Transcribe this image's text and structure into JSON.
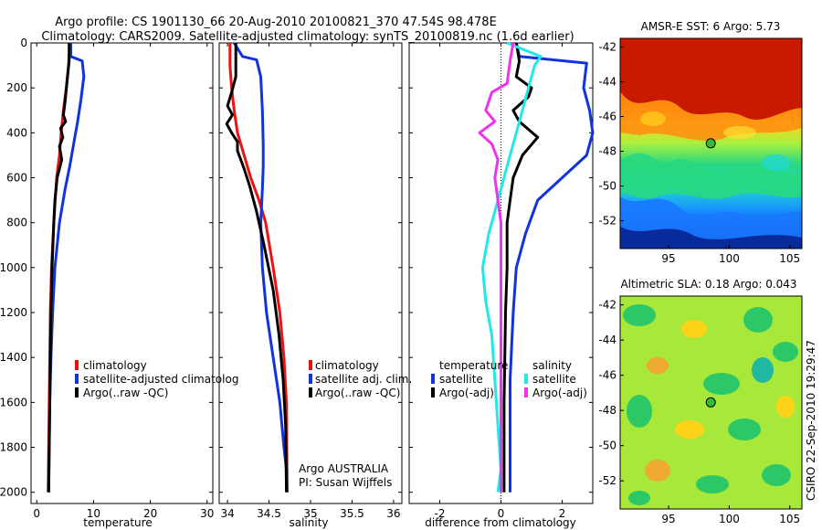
{
  "figure": {
    "title_line1": "Argo profile: CS 1901130_66 20-Aug-2010 20100821_370 47.54S 98.478E",
    "title_line2": "Climatology: CARS2009. Satellite-adjusted climatology: synTS_20100819.nc (1.6d earlier)",
    "side_label": "CSIRO 22-Sep-2010 19:29:47",
    "note_line1": "Argo AUSTRALIA",
    "note_line2": "PI: Susan Wijffels"
  },
  "colors": {
    "red": "#ee1111",
    "blue": "#1133dd",
    "black": "#000000",
    "cyan": "#22e8e8",
    "magenta": "#ee33ee"
  },
  "chart_data": [
    {
      "id": "temperature",
      "type": "line",
      "xlabel": "temperature",
      "ylabel": "",
      "xlim": [
        -1,
        31
      ],
      "ylim": [
        2050,
        0
      ],
      "xticks": [
        0,
        10,
        20,
        30
      ],
      "yticks": [
        0,
        200,
        400,
        600,
        800,
        1000,
        1200,
        1400,
        1600,
        1800,
        2000
      ],
      "legend": [
        "climatology",
        "satellite-adjusted climatolog",
        "Argo(..raw -QC)"
      ],
      "series": [
        {
          "name": "climatology",
          "color": "#ee1111",
          "x": [
            5.8,
            5.6,
            5.2,
            4.7,
            4.3,
            4.0,
            3.5,
            3.0,
            2.6,
            2.4,
            2.3,
            2.2,
            2.1,
            2.0
          ],
          "y": [
            0,
            100,
            200,
            300,
            400,
            500,
            600,
            800,
            1000,
            1200,
            1400,
            1600,
            1800,
            2000
          ]
        },
        {
          "name": "satellite-adjusted climatology",
          "color": "#1133dd",
          "x": [
            6.0,
            6.0,
            8.0,
            8.3,
            7.8,
            7.2,
            6.5,
            5.8,
            5.0,
            4.0,
            3.2,
            2.8,
            2.5,
            2.3,
            2.2,
            2.1
          ],
          "y": [
            0,
            60,
            80,
            150,
            250,
            350,
            450,
            550,
            650,
            800,
            1000,
            1200,
            1400,
            1600,
            1800,
            2000
          ]
        },
        {
          "name": "Argo",
          "color": "#000000",
          "x": [
            5.7,
            5.7,
            5.3,
            5.0,
            4.7,
            5.1,
            4.2,
            4.6,
            4.0,
            4.4,
            3.6,
            3.2,
            3.0,
            2.7,
            2.5,
            2.4,
            2.3,
            2.2,
            2.1
          ],
          "y": [
            0,
            80,
            180,
            260,
            320,
            350,
            380,
            420,
            460,
            520,
            600,
            700,
            800,
            1000,
            1200,
            1400,
            1600,
            1800,
            2000
          ]
        }
      ]
    },
    {
      "id": "salinity",
      "type": "line",
      "xlabel": "salinity",
      "xlim": [
        33.9,
        36.1
      ],
      "ylim": [
        2050,
        0
      ],
      "xticks": [
        34,
        34.5,
        35,
        35.5,
        36
      ],
      "xticklabels": [
        "34",
        "34.5",
        "35",
        "35.5",
        "36"
      ],
      "legend": [
        "climatology",
        "satellite adj. clim.",
        "Argo(..raw -QC)"
      ],
      "series": [
        {
          "name": "climatology",
          "color": "#ee1111",
          "x": [
            34.03,
            34.03,
            34.05,
            34.08,
            34.12,
            34.2,
            34.28,
            34.38,
            34.46,
            34.55,
            34.63,
            34.68,
            34.71,
            34.72
          ],
          "y": [
            0,
            100,
            200,
            300,
            400,
            500,
            600,
            700,
            800,
            1000,
            1200,
            1400,
            1600,
            2000
          ]
        },
        {
          "name": "satellite adj. clim.",
          "color": "#1133dd",
          "x": [
            34.08,
            34.18,
            34.35,
            34.4,
            34.42,
            34.43,
            34.43,
            34.42,
            34.4,
            34.42,
            34.47,
            34.55,
            34.63,
            34.68,
            34.71,
            34.72
          ],
          "y": [
            0,
            60,
            75,
            150,
            300,
            450,
            550,
            650,
            800,
            1000,
            1200,
            1400,
            1600,
            1800,
            1900,
            2000
          ]
        },
        {
          "name": "Argo",
          "color": "#000000",
          "x": [
            34.1,
            34.1,
            34.05,
            34.0,
            34.06,
            33.99,
            34.05,
            34.12,
            34.12,
            34.2,
            34.27,
            34.35,
            34.44,
            34.55,
            34.62,
            34.67,
            34.7,
            34.71
          ],
          "y": [
            0,
            150,
            220,
            280,
            320,
            360,
            400,
            440,
            480,
            560,
            640,
            750,
            900,
            1100,
            1300,
            1500,
            1700,
            2000
          ]
        }
      ]
    },
    {
      "id": "difference",
      "type": "line",
      "xlabel": "difference from climatology",
      "xlim": [
        -3,
        3
      ],
      "ylim": [
        2050,
        0
      ],
      "xticks": [
        -2,
        0,
        2
      ],
      "legend_title_left": "temperature",
      "legend_title_right": "salinity",
      "legend": [
        "satellite",
        "Argo(-adj)",
        "satellite",
        "Argo(-adj)"
      ],
      "series": [
        {
          "name": "temperature satellite",
          "color": "#1133dd",
          "x": [
            0.5,
            0.6,
            2.8,
            2.7,
            2.9,
            3.0,
            2.8,
            2.0,
            1.2,
            0.8,
            0.5,
            0.4,
            0.3,
            0.3,
            0.3
          ],
          "y": [
            0,
            60,
            90,
            200,
            300,
            400,
            500,
            600,
            700,
            850,
            1000,
            1200,
            1500,
            1800,
            2000
          ]
        },
        {
          "name": "temperature Argo(-adj)",
          "color": "#000000",
          "x": [
            0.5,
            0.6,
            0.5,
            1.0,
            0.9,
            0.4,
            0.6,
            1.2,
            0.7,
            0.4,
            0.3,
            0.2,
            0.2,
            0.15,
            0.1,
            0.1
          ],
          "y": [
            0,
            80,
            150,
            200,
            240,
            300,
            350,
            420,
            500,
            600,
            700,
            800,
            1000,
            1200,
            1600,
            2000
          ]
        },
        {
          "name": "salinity satellite",
          "color": "#22e8e8",
          "x": [
            0.2,
            1.3,
            1.1,
            0.9,
            0.7,
            0.5,
            0.3,
            0.0,
            -0.4,
            -0.6,
            -0.5,
            -0.3,
            -0.2,
            -0.1,
            0.0,
            -0.1
          ],
          "y": [
            0,
            60,
            100,
            200,
            300,
            400,
            500,
            650,
            850,
            1000,
            1150,
            1300,
            1500,
            1700,
            1900,
            2000
          ]
        },
        {
          "name": "salinity Argo(-adj)",
          "color": "#ee33ee",
          "x": [
            0.4,
            0.3,
            0.2,
            -0.3,
            -0.5,
            -0.2,
            -0.7,
            -0.3,
            -0.1,
            -0.2,
            0.0,
            0.0,
            0.0,
            0.0
          ],
          "y": [
            0,
            80,
            180,
            220,
            300,
            350,
            400,
            450,
            520,
            600,
            800,
            1200,
            1600,
            2000
          ]
        }
      ]
    },
    {
      "id": "sst_map",
      "type": "heatmap",
      "title": "AMSR-E SST: 6 Argo: 5.73",
      "xticks": [
        95,
        100,
        105
      ],
      "yticks": [
        -42,
        -44,
        -46,
        -48,
        -50,
        -52
      ],
      "xlim": [
        91,
        106
      ],
      "ylim": [
        -53.6,
        -41.5
      ],
      "argo_position": {
        "lon": 98.478,
        "lat": -47.54
      }
    },
    {
      "id": "sla_map",
      "type": "heatmap",
      "title": "Altimetric SLA: 0.18 Argo: 0.043",
      "xticks": [
        95,
        100,
        105
      ],
      "yticks": [
        -42,
        -44,
        -46,
        -48,
        -50,
        -52
      ],
      "xlim": [
        91,
        106
      ],
      "ylim": [
        -53.6,
        -41.5
      ],
      "argo_position": {
        "lon": 98.478,
        "lat": -47.54
      }
    }
  ]
}
